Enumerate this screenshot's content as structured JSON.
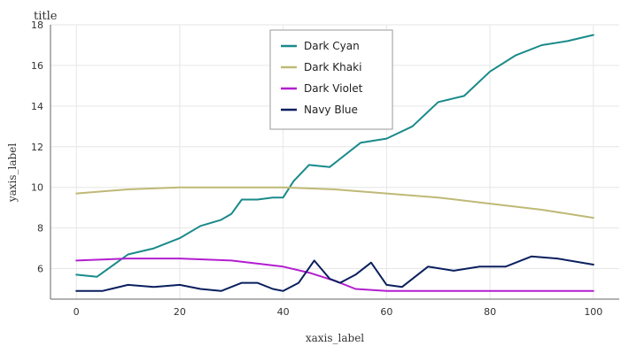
{
  "chart_data": {
    "type": "line",
    "title": "title",
    "xlabel": "xaxis_label",
    "ylabel": "yaxis_label",
    "xlim": [
      -5,
      105
    ],
    "ylim": [
      4.5,
      18
    ],
    "x_ticks": [
      0,
      20,
      40,
      60,
      80,
      100
    ],
    "y_ticks": [
      6,
      8,
      10,
      12,
      14,
      16,
      18
    ],
    "grid": true,
    "legend_position": "top-center",
    "series": [
      {
        "name": "Dark Cyan",
        "color": "#1a8a8a",
        "x": [
          0,
          4,
          10,
          15,
          20,
          24,
          28,
          30,
          32,
          35,
          38,
          40,
          42,
          45,
          49,
          55,
          60,
          65,
          70,
          75,
          80,
          85,
          90,
          95,
          100
        ],
        "y": [
          5.7,
          5.6,
          6.7,
          7.0,
          7.5,
          8.1,
          8.4,
          8.7,
          9.4,
          9.4,
          9.5,
          9.5,
          10.3,
          11.1,
          11.0,
          12.2,
          12.4,
          13.0,
          14.2,
          14.5,
          15.7,
          16.5,
          17.0,
          17.2,
          17.5
        ]
      },
      {
        "name": "Dark Khaki",
        "color": "#bfb976",
        "x": [
          0,
          10,
          20,
          30,
          40,
          50,
          60,
          70,
          80,
          90,
          100
        ],
        "y": [
          9.7,
          9.9,
          10.0,
          10.0,
          10.0,
          9.9,
          9.7,
          9.5,
          9.2,
          8.9,
          8.5
        ]
      },
      {
        "name": "Dark Violet",
        "color": "#b31ecf",
        "x": [
          0,
          10,
          20,
          30,
          40,
          45,
          50,
          54,
          60,
          70,
          80,
          90,
          100
        ],
        "y": [
          6.4,
          6.5,
          6.5,
          6.4,
          6.1,
          5.8,
          5.4,
          5.0,
          4.9,
          4.9,
          4.9,
          4.9,
          4.9
        ]
      },
      {
        "name": "Navy Blue",
        "color": "#0a1f5e",
        "x": [
          0,
          5,
          10,
          15,
          20,
          24,
          28,
          32,
          35,
          38,
          40,
          43,
          46,
          49,
          51,
          54,
          57,
          60,
          63,
          68,
          73,
          78,
          83,
          88,
          93,
          100
        ],
        "y": [
          4.9,
          4.9,
          5.2,
          5.1,
          5.2,
          5.0,
          4.9,
          5.3,
          5.3,
          5.0,
          4.9,
          5.3,
          6.4,
          5.5,
          5.3,
          5.7,
          6.3,
          5.2,
          5.1,
          6.1,
          5.9,
          6.1,
          6.1,
          6.6,
          6.5,
          6.2
        ]
      }
    ]
  }
}
